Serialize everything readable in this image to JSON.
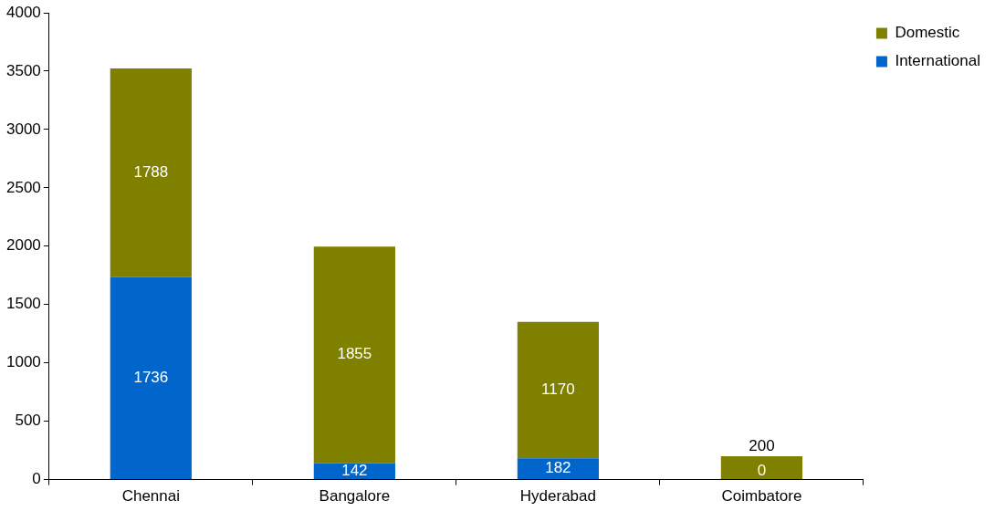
{
  "chart_data": {
    "type": "bar",
    "stacked": true,
    "categories": [
      "Chennai",
      "Bangalore",
      "Hyderabad",
      "Coimbatore"
    ],
    "series": [
      {
        "name": "International",
        "color": "#0066cc",
        "values": [
          1736,
          142,
          182,
          0
        ]
      },
      {
        "name": "Domestic",
        "color": "#808000",
        "values": [
          1788,
          1855,
          1170,
          200
        ]
      }
    ],
    "ylim": [
      0,
      4000
    ],
    "yticks": [
      0,
      500,
      1000,
      1500,
      2000,
      2500,
      3000,
      3500,
      4000
    ],
    "grid": false,
    "legend": "top right",
    "data_labels": true
  }
}
